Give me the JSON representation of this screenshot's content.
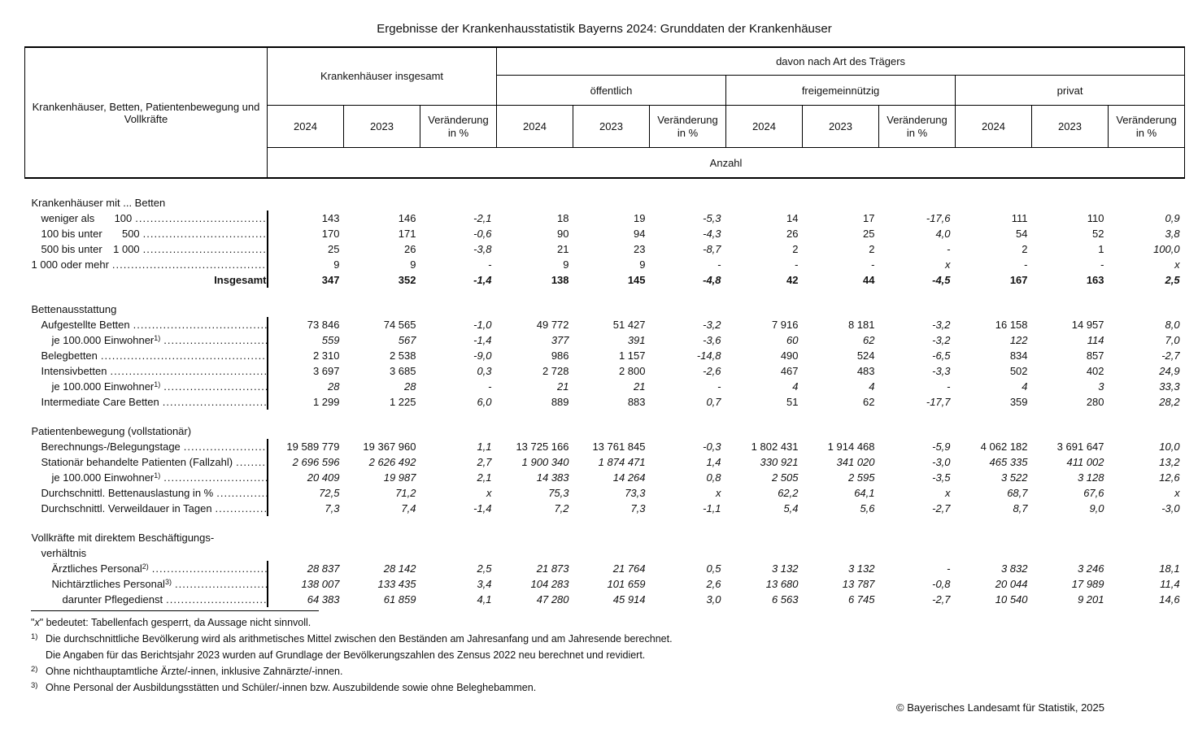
{
  "title": "Ergebnisse der Krankenhausstatistik Bayerns 2024: Grunddaten der Krankenhäuser",
  "header": {
    "row_label": "Krankenhäuser, Betten, Patientenbewegung und Vollkräfte",
    "total_group": "Krankenhäuser insgesamt",
    "traeger_label": "davon nach Art des Trägers",
    "traeger_groups": [
      "öffentlich",
      "freigemeinnützig",
      "privat"
    ],
    "year_cols": [
      "2024",
      "2023",
      "Veränderung in %"
    ],
    "unit_label": "Anzahl"
  },
  "sections": [
    {
      "header_lines": [
        "Krankenhäuser mit ... Betten"
      ],
      "rows": [
        {
          "label": "weniger als",
          "label2": "100",
          "indent": 1,
          "dots": true,
          "values": [
            "143",
            "146",
            "-2,1",
            "18",
            "19",
            "-5,3",
            "14",
            "17",
            "-17,6",
            "111",
            "110",
            "0,9"
          ]
        },
        {
          "label": "100 bis unter",
          "label2": "500",
          "indent": 1,
          "dots": true,
          "values": [
            "170",
            "171",
            "-0,6",
            "90",
            "94",
            "-4,3",
            "26",
            "25",
            "4,0",
            "54",
            "52",
            "3,8"
          ]
        },
        {
          "label": "500 bis unter",
          "label2": "1 000",
          "indent": 1,
          "dots": true,
          "values": [
            "25",
            "26",
            "-3,8",
            "21",
            "23",
            "-8,7",
            "2",
            "2",
            "-",
            "2",
            "1",
            "100,0"
          ]
        },
        {
          "label": "1 000 oder mehr",
          "indent": 0,
          "dots": true,
          "values": [
            "9",
            "9",
            "-",
            "9",
            "9",
            "-",
            "-",
            "-",
            "x",
            "-",
            "-",
            "x"
          ]
        },
        {
          "label": "Insgesamt",
          "total": true,
          "values": [
            "347",
            "352",
            "-1,4",
            "138",
            "145",
            "-4,8",
            "42",
            "44",
            "-4,5",
            "167",
            "163",
            "2,5"
          ]
        }
      ]
    },
    {
      "header_lines": [
        "Bettenausstattung"
      ],
      "rows": [
        {
          "label": "Aufgestellte Betten",
          "indent": 1,
          "dots": true,
          "values": [
            "73 846",
            "74 565",
            "-1,0",
            "49 772",
            "51 427",
            "-3,2",
            "7 916",
            "8 181",
            "-3,2",
            "16 158",
            "14 957",
            "8,0"
          ]
        },
        {
          "label": "je 100.000 Einwohner",
          "sup": "1)",
          "indent": 2,
          "dots": true,
          "italic": true,
          "values": [
            "559",
            "567",
            "-1,4",
            "377",
            "391",
            "-3,6",
            "60",
            "62",
            "-3,2",
            "122",
            "114",
            "7,0"
          ]
        },
        {
          "label": "Belegbetten",
          "indent": 1,
          "dots": true,
          "values": [
            "2 310",
            "2 538",
            "-9,0",
            "986",
            "1 157",
            "-14,8",
            "490",
            "524",
            "-6,5",
            "834",
            "857",
            "-2,7"
          ]
        },
        {
          "label": "Intensivbetten",
          "indent": 1,
          "dots": true,
          "values": [
            "3 697",
            "3 685",
            "0,3",
            "2 728",
            "2 800",
            "-2,6",
            "467",
            "483",
            "-3,3",
            "502",
            "402",
            "24,9"
          ]
        },
        {
          "label": "je 100.000 Einwohner",
          "sup": "1)",
          "indent": 2,
          "dots": true,
          "italic": true,
          "values": [
            "28",
            "28",
            "-",
            "21",
            "21",
            "-",
            "4",
            "4",
            "-",
            "4",
            "3",
            "33,3"
          ]
        },
        {
          "label": "Intermediate Care Betten",
          "indent": 1,
          "dots": true,
          "values": [
            "1 299",
            "1 225",
            "6,0",
            "889",
            "883",
            "0,7",
            "51",
            "62",
            "-17,7",
            "359",
            "280",
            "28,2"
          ]
        }
      ]
    },
    {
      "header_lines": [
        "Patientenbewegung (vollstationär)"
      ],
      "rows": [
        {
          "label": "Berechnungs-/Belegungstage",
          "indent": 1,
          "dots": true,
          "values": [
            "19 589 779",
            "19 367 960",
            "1,1",
            "13 725 166",
            "13 761 845",
            "-0,3",
            "1 802 431",
            "1 914 468",
            "-5,9",
            "4 062 182",
            "3 691 647",
            "10,0"
          ]
        },
        {
          "label": "Stationär behandelte Patienten (Fallzahl)",
          "indent": 1,
          "dots": true,
          "italic": true,
          "values": [
            "2 696 596",
            "2 626 492",
            "2,7",
            "1 900 340",
            "1 874 471",
            "1,4",
            "330 921",
            "341 020",
            "-3,0",
            "465 335",
            "411 002",
            "13,2"
          ]
        },
        {
          "label": "je 100.000 Einwohner",
          "sup": "1)",
          "indent": 2,
          "dots": true,
          "italic": true,
          "values": [
            "20 409",
            "19 987",
            "2,1",
            "14 383",
            "14 264",
            "0,8",
            "2 505",
            "2 595",
            "-3,5",
            "3 522",
            "3 128",
            "12,6"
          ]
        },
        {
          "label": "Durchschnittl. Bettenauslastung in %",
          "indent": 1,
          "dots": true,
          "italic": true,
          "values": [
            "72,5",
            "71,2",
            "x",
            "75,3",
            "73,3",
            "x",
            "62,2",
            "64,1",
            "x",
            "68,7",
            "67,6",
            "x"
          ]
        },
        {
          "label": "Durchschnittl. Verweildauer in Tagen",
          "indent": 1,
          "dots": true,
          "italic": true,
          "values": [
            "7,3",
            "7,4",
            "-1,4",
            "7,2",
            "7,3",
            "-1,1",
            "5,4",
            "5,6",
            "-2,7",
            "8,7",
            "9,0",
            "-3,0"
          ]
        }
      ]
    },
    {
      "header_lines": [
        "Vollkräfte mit direktem Beschäftigungs-",
        "verhältnis"
      ],
      "rows": [
        {
          "label": "Ärztliches Personal",
          "sup": "2)",
          "indent": 2,
          "dots": true,
          "italic": true,
          "values": [
            "28 837",
            "28 142",
            "2,5",
            "21 873",
            "21 764",
            "0,5",
            "3 132",
            "3 132",
            "-",
            "3 832",
            "3 246",
            "18,1"
          ]
        },
        {
          "label": "Nichtärztliches Personal",
          "sup": "3)",
          "indent": 2,
          "dots": true,
          "italic": true,
          "values": [
            "138 007",
            "133 435",
            "3,4",
            "104 283",
            "101 659",
            "2,6",
            "13 680",
            "13 787",
            "-0,8",
            "20 044",
            "17 989",
            "11,4"
          ]
        },
        {
          "label": "darunter Pflegedienst",
          "indent": 3,
          "dots": true,
          "italic": true,
          "values": [
            "64 383",
            "61 859",
            "4,1",
            "47 280",
            "45 914",
            "3,0",
            "6 563",
            "6 745",
            "-2,7",
            "10 540",
            "9 201",
            "14,6"
          ]
        }
      ]
    }
  ],
  "footnotes": {
    "x_note": {
      "pre": "\"",
      "x": "x",
      "post": "\" bedeutet: Tabellenfach gesperrt, da Aussage nicht sinnvoll."
    },
    "items": [
      {
        "marker": "1)",
        "lines": [
          "Die durchschnittliche Bevölkerung wird als arithmetisches Mittel zwischen den Beständen am Jahresanfang und am Jahresende berechnet.",
          "Die Angaben für das Berichtsjahr 2023 wurden auf Grundlage der Bevölkerungszahlen des Zensus 2022 neu berechnet und revidiert."
        ]
      },
      {
        "marker": "2)",
        "lines": [
          "Ohne nichthauptamtliche Ärzte/-innen, inklusive Zahnärzte/-innen."
        ]
      },
      {
        "marker": "3)",
        "lines": [
          "Ohne Personal der Ausbildungsstätten und Schüler/-innen bzw. Auszubildende sowie ohne Beleghebammen."
        ]
      }
    ]
  },
  "copyright": "© Bayerisches Landesamt für Statistik, 2025"
}
